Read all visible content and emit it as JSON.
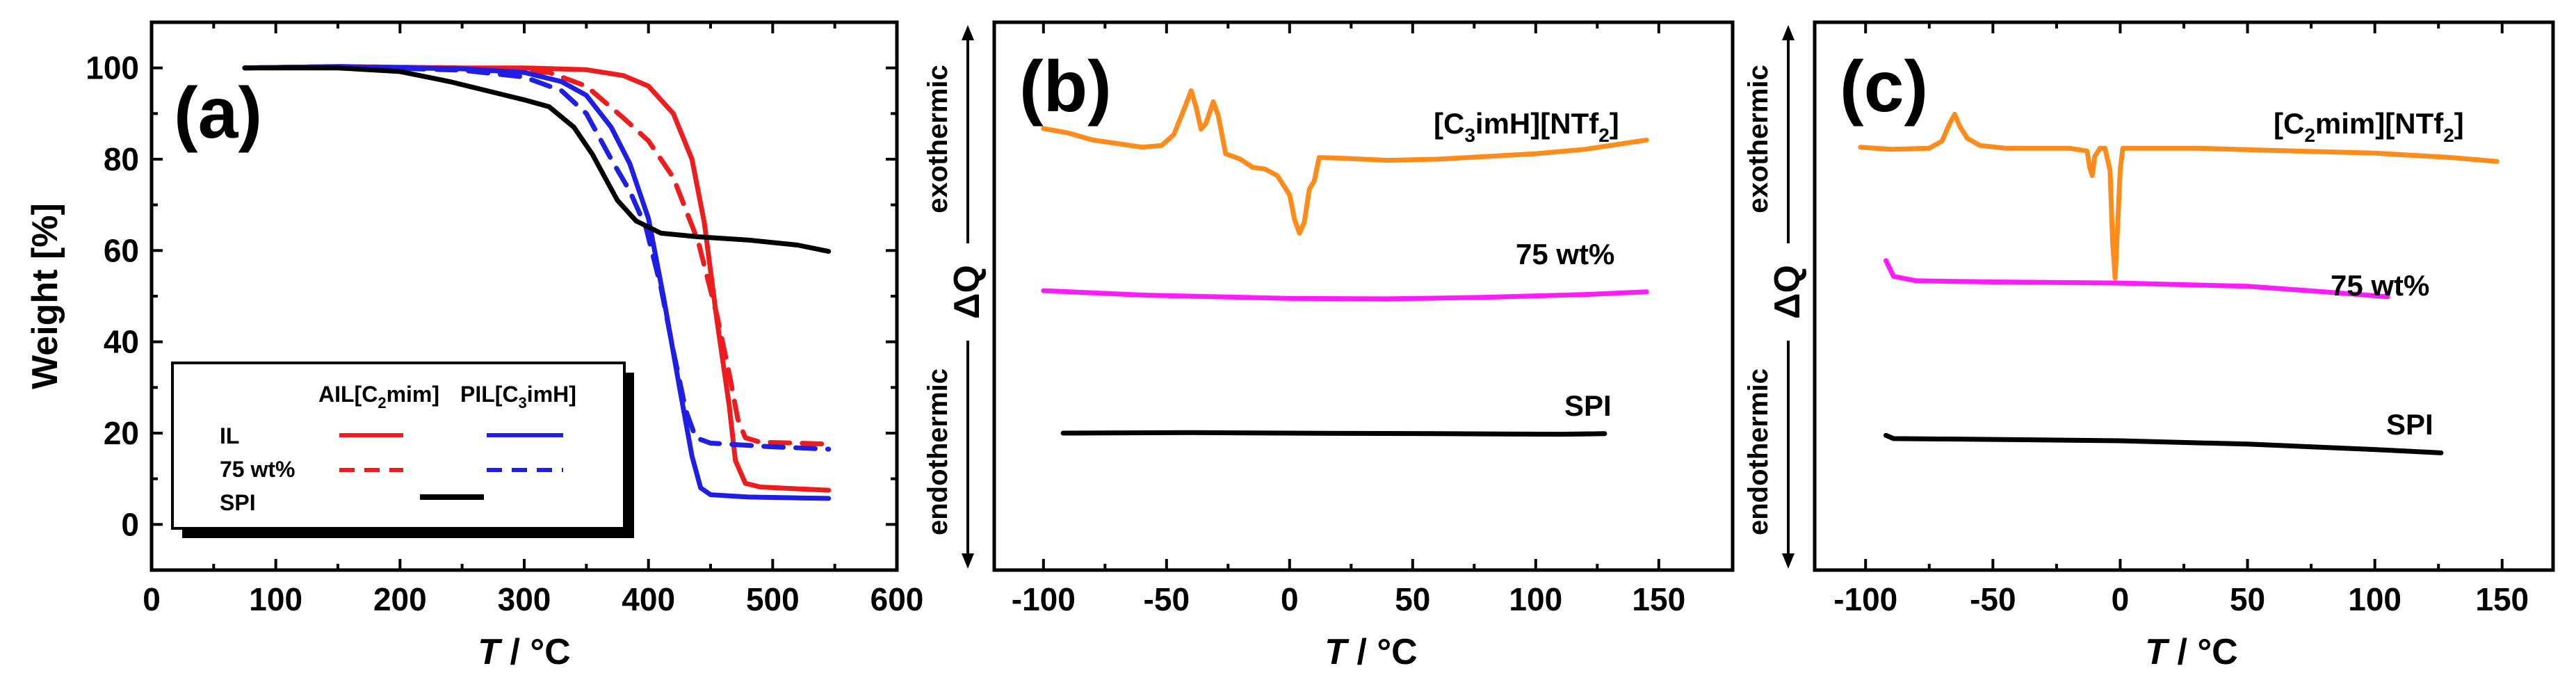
{
  "chart_data": [
    {
      "panel": "(a)",
      "type": "line",
      "xlabel": "T / °C",
      "ylabel": "Weight [%]",
      "xlim": [
        0,
        600
      ],
      "ylim": [
        -10,
        110
      ],
      "xticks": [
        "0",
        "100",
        "200",
        "300",
        "400",
        "500",
        "600"
      ],
      "yticks": [
        "0",
        "20",
        "40",
        "60",
        "80",
        "100"
      ],
      "legend": {
        "position": "bottom-left",
        "col1": "AIL[C2mim]",
        "col2": "PIL[C3imH]",
        "rows": [
          "IL",
          "75 wt%",
          "SPI"
        ]
      },
      "series": [
        {
          "name": "AIL[C2mim] IL",
          "color": "#ee1c1c",
          "dash": "solid",
          "points": [
            [
              75,
              100
            ],
            [
              150,
              100.3
            ],
            [
              250,
              100
            ],
            [
              300,
              100
            ],
            [
              350,
              99.6
            ],
            [
              380,
              98.3
            ],
            [
              400,
              96
            ],
            [
              420,
              90
            ],
            [
              435,
              80
            ],
            [
              445,
              66
            ],
            [
              455,
              45
            ],
            [
              465,
              26
            ],
            [
              470,
              14
            ],
            [
              478,
              9
            ],
            [
              490,
              8.2
            ],
            [
              520,
              7.8
            ],
            [
              545,
              7.5
            ]
          ]
        },
        {
          "name": "AIL[C2mim] 75 wt%",
          "color": "#ee1c1c",
          "dash": "dashed",
          "points": [
            [
              75,
              100
            ],
            [
              150,
              100.3
            ],
            [
              250,
              100
            ],
            [
              320,
              99
            ],
            [
              350,
              96
            ],
            [
              380,
              89
            ],
            [
              400,
              84
            ],
            [
              420,
              76
            ],
            [
              440,
              62
            ],
            [
              455,
              46
            ],
            [
              465,
              33
            ],
            [
              472,
              23
            ],
            [
              478,
              19
            ],
            [
              490,
              18
            ],
            [
              520,
              17.8
            ],
            [
              545,
              17.6
            ]
          ]
        },
        {
          "name": "PIL[C3imH] IL",
          "color": "#1e1ee6",
          "dash": "solid",
          "points": [
            [
              75,
              100
            ],
            [
              150,
              100.3
            ],
            [
              250,
              99.8
            ],
            [
              300,
              99
            ],
            [
              330,
              97
            ],
            [
              350,
              94
            ],
            [
              370,
              87
            ],
            [
              385,
              79
            ],
            [
              400,
              67
            ],
            [
              412,
              50
            ],
            [
              425,
              30
            ],
            [
              435,
              15
            ],
            [
              442,
              8
            ],
            [
              450,
              6.5
            ],
            [
              480,
              6
            ],
            [
              520,
              5.8
            ],
            [
              545,
              5.7
            ]
          ]
        },
        {
          "name": "PIL[C3imH] 75 wt%",
          "color": "#1e1ee6",
          "dash": "dashed",
          "points": [
            [
              75,
              100
            ],
            [
              150,
              100.3
            ],
            [
              250,
              99.5
            ],
            [
              300,
              98
            ],
            [
              330,
              95
            ],
            [
              350,
              90
            ],
            [
              370,
              80
            ],
            [
              385,
              73
            ],
            [
              398,
              65
            ],
            [
              410,
              52
            ],
            [
              420,
              38
            ],
            [
              430,
              25
            ],
            [
              438,
              19
            ],
            [
              450,
              17.8
            ],
            [
              500,
              17
            ],
            [
              545,
              16.5
            ]
          ]
        },
        {
          "name": "SPI",
          "color": "#000000",
          "dash": "solid",
          "points": [
            [
              75,
              100
            ],
            [
              150,
              100
            ],
            [
              200,
              99.2
            ],
            [
              240,
              97
            ],
            [
              270,
              95
            ],
            [
              300,
              93
            ],
            [
              320,
              91.5
            ],
            [
              340,
              87
            ],
            [
              355,
              81
            ],
            [
              365,
              76
            ],
            [
              375,
              71
            ],
            [
              390,
              66.5
            ],
            [
              410,
              63.8
            ],
            [
              440,
              63
            ],
            [
              480,
              62.3
            ],
            [
              520,
              61.2
            ],
            [
              545,
              59.8
            ]
          ]
        }
      ]
    },
    {
      "panel": "(b)",
      "type": "line",
      "xlabel": "T / °C",
      "ylabel": "ΔQ",
      "ylabel_top": "exothermic",
      "ylabel_bottom": "endothermic",
      "xlim": [
        -120,
        180
      ],
      "ylim": [
        0,
        100
      ],
      "xticks": [
        "-100",
        "-50",
        "0",
        "50",
        "100",
        "150"
      ],
      "labels": [
        "[C3imH][NTf2]",
        "75 wt%",
        "SPI"
      ],
      "series": [
        {
          "name": "[C3imH][NTf2]",
          "color": "#ff8c1a",
          "points": [
            [
              -100,
              80.6
            ],
            [
              -90,
              79.8
            ],
            [
              -80,
              78.5
            ],
            [
              -60,
              77.2
            ],
            [
              -52,
              77.5
            ],
            [
              -47,
              79.5
            ],
            [
              -43,
              84
            ],
            [
              -40,
              87.5
            ],
            [
              -38,
              84.5
            ],
            [
              -36,
              80.5
            ],
            [
              -34,
              81.5
            ],
            [
              -31,
              85.5
            ],
            [
              -29,
              83
            ],
            [
              -26,
              76
            ],
            [
              -20,
              75
            ],
            [
              -15,
              73.5
            ],
            [
              -10,
              73.2
            ],
            [
              -5,
              72
            ],
            [
              0,
              68.5
            ],
            [
              2,
              64
            ],
            [
              4,
              61.5
            ],
            [
              6,
              63.5
            ],
            [
              8,
              69.5
            ],
            [
              10,
              71
            ],
            [
              12,
              75.3
            ],
            [
              20,
              75.2
            ],
            [
              40,
              74.8
            ],
            [
              60,
              75
            ],
            [
              80,
              75.5
            ],
            [
              100,
              76
            ],
            [
              120,
              76.8
            ],
            [
              145,
              78.5
            ]
          ]
        },
        {
          "name": "75 wt%",
          "color": "#ff1aff",
          "points": [
            [
              -100,
              51
            ],
            [
              -60,
              50.2
            ],
            [
              0,
              49.6
            ],
            [
              40,
              49.5
            ],
            [
              80,
              49.8
            ],
            [
              120,
              50.3
            ],
            [
              145,
              50.8
            ]
          ]
        },
        {
          "name": "SPI",
          "color": "#000000",
          "points": [
            [
              -92,
              25
            ],
            [
              -40,
              25.1
            ],
            [
              0,
              25
            ],
            [
              60,
              24.9
            ],
            [
              110,
              24.8
            ],
            [
              128,
              24.9
            ]
          ]
        }
      ]
    },
    {
      "panel": "(c)",
      "type": "line",
      "xlabel": "T / °C",
      "ylabel": "ΔQ",
      "ylabel_top": "exothermic",
      "ylabel_bottom": "endothermic",
      "xlim": [
        -120,
        170
      ],
      "ylim": [
        0,
        100
      ],
      "xticks": [
        "-100",
        "-50",
        "0",
        "50",
        "100",
        "150"
      ],
      "labels": [
        "[C2mim][NTf2]",
        "75 wt%",
        "SPI"
      ],
      "series": [
        {
          "name": "[C2mim][NTf2]",
          "color": "#ff8c1a",
          "points": [
            [
              -102,
              77.2
            ],
            [
              -90,
              76.8
            ],
            [
              -75,
              77
            ],
            [
              -70,
              78.3
            ],
            [
              -67,
              81.5
            ],
            [
              -65,
              83.2
            ],
            [
              -63,
              81
            ],
            [
              -60,
              78.8
            ],
            [
              -55,
              77.5
            ],
            [
              -45,
              77
            ],
            [
              -20,
              77
            ],
            [
              -13,
              76.5
            ],
            [
              -12,
              73.5
            ],
            [
              -11,
              72
            ],
            [
              -10,
              75.5
            ],
            [
              -8,
              77
            ],
            [
              -6,
              77
            ],
            [
              -4,
              73
            ],
            [
              -3,
              60
            ],
            [
              -2,
              53.3
            ],
            [
              -1,
              63
            ],
            [
              0,
              73
            ],
            [
              1,
              77
            ],
            [
              5,
              77
            ],
            [
              30,
              77
            ],
            [
              60,
              76.6
            ],
            [
              100,
              76.1
            ],
            [
              130,
              75.3
            ],
            [
              148,
              74.6
            ]
          ]
        },
        {
          "name": "75 wt%",
          "color": "#ff1aff",
          "points": [
            [
              -92,
              56.5
            ],
            [
              -89,
              53.6
            ],
            [
              -80,
              52.8
            ],
            [
              -50,
              52.6
            ],
            [
              0,
              52.4
            ],
            [
              50,
              51.8
            ],
            [
              80,
              50.8
            ],
            [
              105,
              49.9
            ]
          ]
        },
        {
          "name": "SPI",
          "color": "#000000",
          "points": [
            [
              -92,
              24.6
            ],
            [
              -89,
              24
            ],
            [
              -60,
              23.9
            ],
            [
              0,
              23.6
            ],
            [
              50,
              23
            ],
            [
              100,
              22
            ],
            [
              126,
              21.4
            ]
          ]
        }
      ]
    }
  ]
}
